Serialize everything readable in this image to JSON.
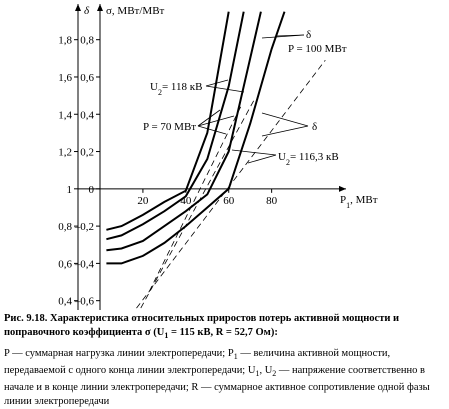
{
  "chart_data": {
    "type": "line",
    "y_axis_title": "σ, МВт/МВт",
    "y2_axis_title": "δ",
    "x_axis_title": [
      "P",
      {
        "sub": "1"
      },
      ", МВт"
    ],
    "xlim": [
      0,
      110
    ],
    "xticks": [
      20,
      40,
      60,
      80
    ],
    "ylim": [
      -0.65,
      0.97
    ],
    "yticks": [
      {
        "value": -0.6,
        "label": "–0,6"
      },
      {
        "value": -0.4,
        "label": "–0,4"
      },
      {
        "value": -0.2,
        "label": "–0,2"
      },
      0,
      {
        "value": 0.2,
        "label": "0,2"
      },
      {
        "value": 0.4,
        "label": "0,4"
      },
      {
        "value": 0.6,
        "label": "0,6"
      },
      {
        "value": 0.8,
        "label": "0,8"
      }
    ],
    "y2lim": [
      0.35,
      1.97
    ],
    "y2ticks": [
      {
        "value": 0.4,
        "label": "0,4"
      },
      {
        "value": 0.6,
        "label": "0,6"
      },
      {
        "value": 0.8,
        "label": "0,8"
      },
      1,
      {
        "value": 1.2,
        "label": "1,2"
      },
      {
        "value": 1.4,
        "label": "1,4"
      },
      {
        "value": 1.6,
        "label": "1,6"
      },
      {
        "value": 1.8,
        "label": "1,8"
      }
    ],
    "series": [
      {
        "color": "#000",
        "dashed": false,
        "x": [
          3,
          10,
          20,
          30,
          40,
          50,
          60
        ],
        "values": [
          -0.22,
          -0.2,
          -0.14,
          -0.07,
          -0.01,
          0.3,
          0.95
        ]
      },
      {
        "color": "#000",
        "dashed": false,
        "x": [
          3,
          10,
          20,
          30,
          40,
          50,
          60,
          67
        ],
        "values": [
          -0.27,
          -0.25,
          -0.19,
          -0.12,
          -0.04,
          0.16,
          0.55,
          0.95
        ]
      },
      {
        "color": "#000",
        "dashed": false,
        "x": [
          3,
          10,
          20,
          30,
          40,
          50,
          60,
          70,
          75
        ],
        "values": [
          -0.33,
          -0.32,
          -0.28,
          -0.2,
          -0.12,
          -0.03,
          0.2,
          0.7,
          0.95
        ]
      },
      {
        "color": "#000",
        "dashed": false,
        "x": [
          3,
          10,
          20,
          30,
          40,
          50,
          60,
          70,
          80,
          86
        ],
        "values": [
          -0.4,
          -0.4,
          -0.36,
          -0.29,
          -0.2,
          -0.1,
          0.0,
          0.35,
          0.75,
          0.95
        ]
      },
      {
        "color": "#000",
        "dashed": true,
        "x": [
          17,
          105
        ],
        "values": [
          -0.64,
          0.69
        ]
      },
      {
        "color": "#000",
        "dashed": true,
        "x": [
          19,
          72
        ],
        "values": [
          -0.64,
          0.48
        ]
      },
      {
        "color": "#000",
        "dashed": true,
        "x": [
          23,
          66
        ],
        "values": [
          -0.55,
          0.45
        ]
      }
    ],
    "annotations": [
      {
        "text": [
          "δ"
        ]
      },
      {
        "text": [
          "P = 100 МВт"
        ]
      },
      {
        "text": [
          "U",
          {
            "sub": "2"
          },
          "= 118 кВ"
        ]
      },
      {
        "text": [
          "P = 70 МВт"
        ]
      },
      {
        "text": [
          "δ"
        ]
      },
      {
        "text": [
          "U",
          {
            "sub": "2"
          },
          "= 116,3 кВ"
        ]
      }
    ]
  },
  "caption": {
    "title": [
      "Рис. 9.18. Характеристика относительных приростов потерь активной мощности и поправочного коэффициента σ (U",
      {
        "sub": "1"
      },
      " = 115 кВ, R = 52,7 Ом):"
    ],
    "body": [
      "P — суммарная нагрузка линии электропередачи; P",
      {
        "sub": "1"
      },
      " — величина активной мощности, передаваемой с одного конца линии электропередачи; U",
      {
        "sub": "1"
      },
      ", U",
      {
        "sub": "2"
      },
      " — напряжение соответственно в начале и в конце линии электропередачи; R — суммарное активное сопротивление одной фазы линии электропередачи"
    ]
  }
}
